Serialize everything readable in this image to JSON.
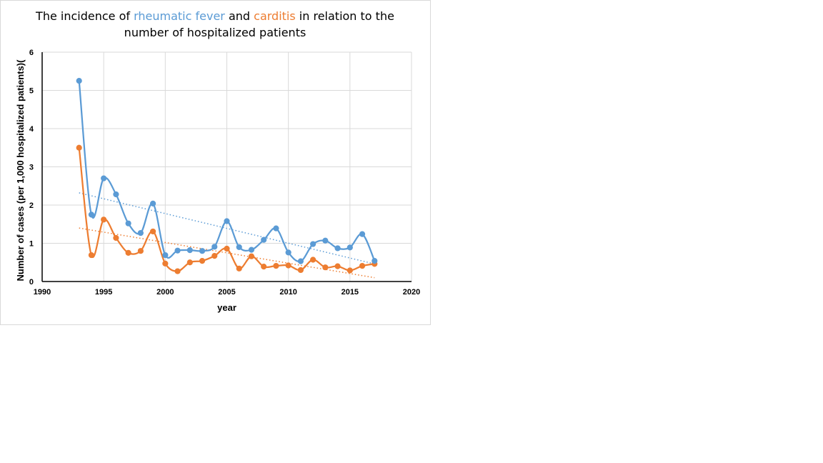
{
  "title": {
    "prefix": "The incidence of ",
    "series1": "rheumatic fever",
    "mid": " and ",
    "series2": "carditis",
    "suffix": " in relation to the",
    "line2": "number of hospitalized patients"
  },
  "colors": {
    "rheumatic": "#5b9bd5",
    "carditis": "#ed7d31",
    "grid": "#d9d9d9",
    "axis": "#000000"
  },
  "chart_data": {
    "type": "line",
    "title": "The incidence of rheumatic fever and carditis in relation to the number of hospitalized patients",
    "xlabel": "year",
    "ylabel": "Number of cases (per 1,000 hospitalized patients)(",
    "xlim": [
      1990,
      2020
    ],
    "ylim": [
      0,
      6
    ],
    "xticks": [
      "1990",
      "1995",
      "2000",
      "2005",
      "2010",
      "2015",
      "2020"
    ],
    "yticks": [
      "0",
      "1",
      "2",
      "3",
      "4",
      "5",
      "6"
    ],
    "grid": true,
    "x": [
      1993,
      1994,
      1995,
      1996,
      1997,
      1998,
      1999,
      2000,
      2001,
      2002,
      2003,
      2004,
      2005,
      2006,
      2007,
      2008,
      2009,
      2010,
      2011,
      2012,
      2013,
      2014,
      2015,
      2016,
      2017
    ],
    "series": [
      {
        "name": "rheumatic fever",
        "values": [
          5.25,
          1.75,
          2.7,
          2.28,
          1.52,
          1.27,
          2.04,
          0.69,
          0.81,
          0.82,
          0.8,
          0.91,
          1.58,
          0.9,
          0.83,
          1.09,
          1.39,
          0.76,
          0.53,
          0.98,
          1.07,
          0.87,
          0.89,
          1.24,
          0.54
        ],
        "trendline": [
          2.32,
          0.46
        ]
      },
      {
        "name": "carditis",
        "values": [
          3.5,
          0.69,
          1.62,
          1.14,
          0.75,
          0.8,
          1.31,
          0.47,
          0.27,
          0.5,
          0.54,
          0.67,
          0.86,
          0.34,
          0.66,
          0.39,
          0.41,
          0.42,
          0.3,
          0.57,
          0.37,
          0.4,
          0.29,
          0.41,
          0.46
        ],
        "trendline": [
          1.4,
          0.1
        ]
      }
    ]
  }
}
